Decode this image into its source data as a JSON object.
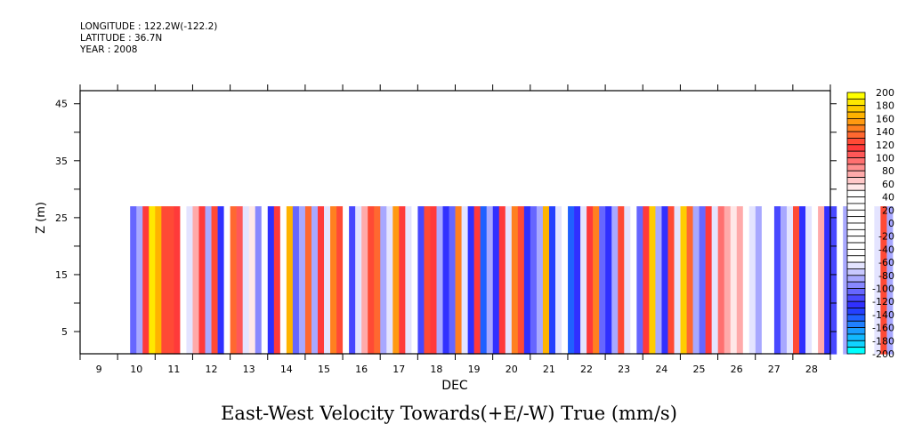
{
  "header": {
    "longitude": "LONGITUDE : 122.2W(-122.2)",
    "latitude": "LATITUDE : 36.7N",
    "year": "YEAR : 2008"
  },
  "chart_data": {
    "type": "heatmap",
    "title": "East-West Velocity Towards(+E/-W) True (mm/s)",
    "xlabel": "DEC",
    "ylabel": "Z (m)",
    "xlim": [
      9,
      29
    ],
    "ylim": [
      1.1,
      47.3
    ],
    "x_tick_labels": [
      "9",
      "10",
      "11",
      "12",
      "13",
      "14",
      "15",
      "16",
      "17",
      "18",
      "19",
      "20",
      "21",
      "22",
      "23",
      "24",
      "25",
      "26",
      "27",
      "28"
    ],
    "y_tick_labels": [
      "5",
      "15",
      "25",
      "35",
      "45"
    ],
    "y_ticks_minor": [
      10,
      20,
      30,
      40
    ],
    "z_range": [
      1,
      27
    ],
    "column_start_day": 10,
    "column_step_days": 0.1667,
    "columns_mm_s": [
      null,
      null,
      -100,
      -80,
      120,
      190,
      170,
      130,
      130,
      120,
      0,
      -60,
      80,
      120,
      -80,
      130,
      -120,
      0,
      140,
      110,
      -60,
      60,
      -90,
      0,
      -120,
      120,
      0,
      170,
      -100,
      -80,
      140,
      -80,
      120,
      -60,
      150,
      130,
      0,
      -110,
      -60,
      80,
      130,
      140,
      -80,
      -60,
      160,
      120,
      -60,
      0,
      -110,
      130,
      120,
      -80,
      -120,
      -100,
      150,
      -60,
      -120,
      120,
      -140,
      -80,
      -120,
      120,
      -60,
      150,
      130,
      -120,
      -100,
      -80,
      170,
      -130,
      -60,
      0,
      -140,
      -120,
      -60,
      120,
      150,
      -100,
      -120,
      -80,
      130,
      -60,
      0,
      -100,
      120,
      180,
      -80,
      -120,
      130,
      -60,
      180,
      140,
      -80,
      -100,
      120,
      -60,
      100,
      80,
      60,
      80,
      0,
      -60,
      -80,
      0,
      0,
      -110,
      -80,
      -60,
      130,
      -120,
      -60,
      0,
      80,
      -120,
      -110,
      0,
      -80,
      -60,
      140,
      0,
      0,
      -60,
      130,
      -80,
      0,
      -120,
      -80,
      0,
      130,
      150,
      120,
      -60,
      0,
      -100,
      160,
      -80,
      -60,
      80,
      140,
      -120,
      130,
      0,
      -80,
      130,
      -80,
      0,
      -60,
      80,
      0,
      -60,
      -60,
      60,
      0,
      0,
      0,
      60,
      120,
      0,
      -60,
      130,
      120,
      -80,
      0,
      0,
      -120,
      80,
      0,
      -60,
      0,
      -80,
      0,
      -60,
      -120,
      0,
      120,
      -100,
      130,
      80,
      -80,
      -60,
      130,
      -100,
      -80,
      0,
      -120,
      -60,
      60,
      130,
      -80,
      -60,
      0,
      -120,
      130,
      80,
      -60,
      150,
      170,
      130,
      -120,
      -80,
      60,
      0,
      70,
      70,
      60,
      80,
      70,
      60,
      0,
      0,
      -60,
      0,
      -120,
      130,
      -60,
      140,
      -120,
      160,
      130,
      -100,
      120,
      -80,
      150,
      -60,
      130,
      -140,
      120,
      -120
    ],
    "colorbar": {
      "min": -200,
      "max": 200,
      "step": 10,
      "labels": [
        "200",
        "180",
        "160",
        "140",
        "120",
        "100",
        "80",
        "60",
        "40",
        "20",
        "0",
        "-20",
        "-40",
        "-60",
        "-80",
        "-100",
        "-120",
        "-140",
        "-160",
        "-180",
        "-200"
      ],
      "colors_top_to_bottom": [
        "#ffff00",
        "#ffe800",
        "#ffcc00",
        "#ffb300",
        "#ff9a10",
        "#ff8020",
        "#ff6830",
        "#ff4a35",
        "#ff3a3a",
        "#ff5858",
        "#ff7070",
        "#ff9090",
        "#ffaaaa",
        "#ffc8c8",
        "#ffe8e8",
        "#ffffff",
        "#ffffff",
        "#ffffff",
        "#ffffff",
        "#ffffff",
        "#ffffff",
        "#ffffff",
        "#ffffff",
        "#ffffff",
        "#ffffff",
        "#ffffff",
        "#e4e4ff",
        "#c8c8ff",
        "#a8a8ff",
        "#8888ff",
        "#6666ff",
        "#4848ff",
        "#3030ff",
        "#2440ff",
        "#2060ff",
        "#2080ff",
        "#1a9cff",
        "#12b8ff",
        "#10d4ff",
        "#00ffff"
      ]
    }
  }
}
